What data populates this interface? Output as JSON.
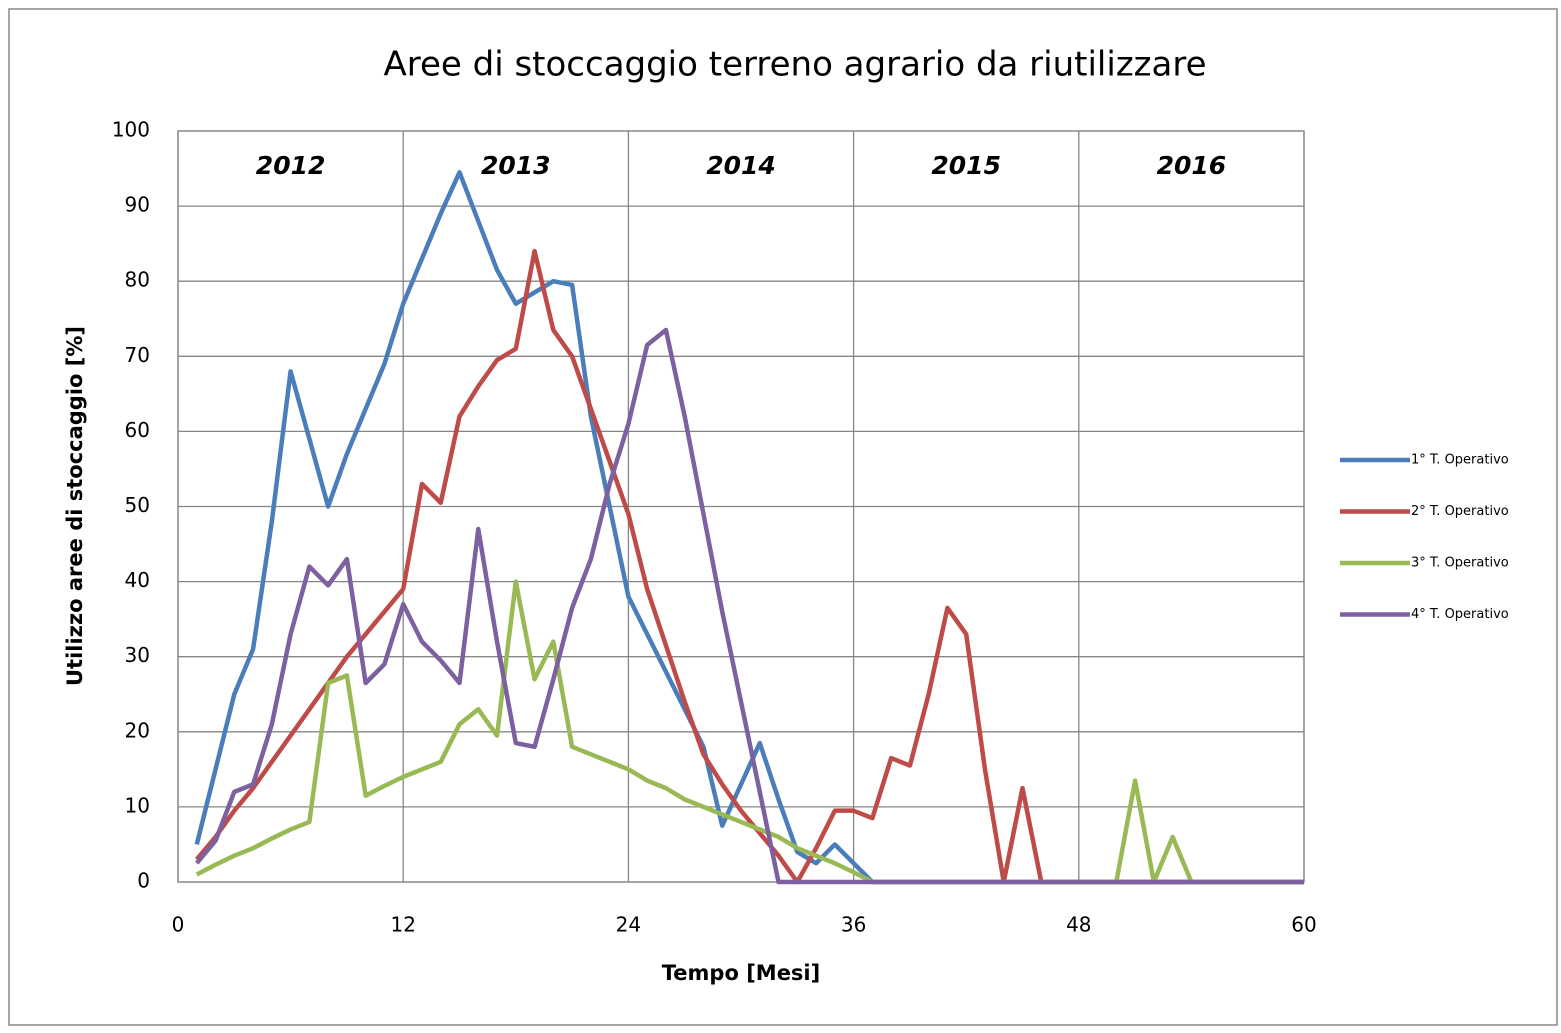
{
  "chart_data": {
    "type": "line",
    "title": "Aree di stoccaggio terreno agrario da riutilizzare",
    "x_label": "Tempo [Mesi]",
    "y_label": "Utilizzo aree di stoccaggio  [%]",
    "annotations": [
      "2012",
      "2013",
      "2014",
      "2015",
      "2016"
    ],
    "x": [
      1,
      2,
      3,
      4,
      5,
      6,
      7,
      8,
      9,
      10,
      11,
      12,
      13,
      14,
      15,
      16,
      17,
      18,
      19,
      20,
      21,
      22,
      23,
      24,
      25,
      26,
      27,
      28,
      29,
      30,
      31,
      32,
      33,
      34,
      35,
      36,
      37,
      38,
      39,
      40,
      41,
      42,
      43,
      44,
      45,
      46,
      47,
      48,
      49,
      50,
      51,
      52,
      53,
      54,
      55,
      56,
      57,
      58,
      59,
      60
    ],
    "series": [
      {
        "name": "1° T. Operativo",
        "color": "#4a7ebb",
        "values": [
          5,
          15,
          25,
          31,
          48,
          68,
          59,
          50,
          57,
          63,
          69,
          77,
          83,
          89,
          94.5,
          88,
          81.5,
          77,
          78.5,
          80,
          79.5,
          62,
          50,
          38,
          33,
          28,
          23,
          18,
          7.5,
          13,
          18.5,
          11,
          4,
          2.5,
          5,
          2.5,
          0,
          0,
          0,
          0,
          0,
          0,
          0,
          0,
          0,
          0,
          0,
          0,
          0,
          0,
          0,
          0,
          0,
          0,
          0,
          0,
          0,
          0,
          0,
          0
        ]
      },
      {
        "name": "2° T. Operativo",
        "color": "#be4b48",
        "values": [
          3,
          6,
          9.5,
          12.5,
          16,
          19.5,
          23,
          26.5,
          30,
          33,
          36,
          39,
          53,
          50.5,
          62,
          66,
          69.5,
          71,
          84,
          73.5,
          70,
          63,
          56,
          49,
          39,
          31.5,
          24,
          17,
          13,
          9.5,
          6.5,
          3.5,
          0,
          4.5,
          9.5,
          9.5,
          8.5,
          16.5,
          15.5,
          25,
          36.5,
          33,
          15,
          0,
          12.5,
          0,
          0,
          0,
          0,
          0,
          0,
          0,
          0,
          0,
          0,
          0,
          0,
          0,
          0,
          0
        ]
      },
      {
        "name": "3° T. Operativo",
        "color": "#98b954",
        "values": [
          1,
          2.3,
          3.5,
          4.5,
          5.8,
          7,
          8,
          26.5,
          27.5,
          11.5,
          12.8,
          14,
          15,
          16,
          21,
          23,
          19.5,
          40,
          27,
          32,
          18,
          17,
          16,
          15,
          13.5,
          12.5,
          11,
          10,
          9,
          8,
          7,
          6,
          4.5,
          3.5,
          2.5,
          1.3,
          0,
          0,
          0,
          0,
          0,
          0,
          0,
          0,
          0,
          0,
          0,
          0,
          0,
          0,
          13.5,
          0,
          6,
          0,
          0,
          0,
          0,
          0,
          0,
          0
        ]
      },
      {
        "name": "4° T. Operativo",
        "color": "#7d60a0",
        "values": [
          2.5,
          5.5,
          12,
          13,
          21,
          33,
          42,
          39.5,
          43,
          26.5,
          29,
          37,
          32,
          29.5,
          26.5,
          47,
          32,
          18.5,
          18,
          27,
          36.5,
          43,
          53,
          61,
          71.5,
          73.5,
          62,
          49,
          36,
          24,
          12,
          0,
          0,
          0,
          0,
          0,
          0,
          0,
          0,
          0,
          0,
          0,
          0,
          0,
          0,
          0,
          0,
          0,
          0,
          0,
          0,
          0,
          0,
          0,
          0,
          0,
          0,
          0,
          0,
          0
        ]
      }
    ],
    "xlim": [
      0,
      60
    ],
    "xticks": [
      0,
      12,
      24,
      36,
      48,
      60
    ],
    "ylim": [
      0,
      100
    ],
    "yticks": [
      0,
      10,
      20,
      30,
      40,
      50,
      60,
      70,
      80,
      90,
      100
    ],
    "grid": true,
    "legend": "right"
  }
}
